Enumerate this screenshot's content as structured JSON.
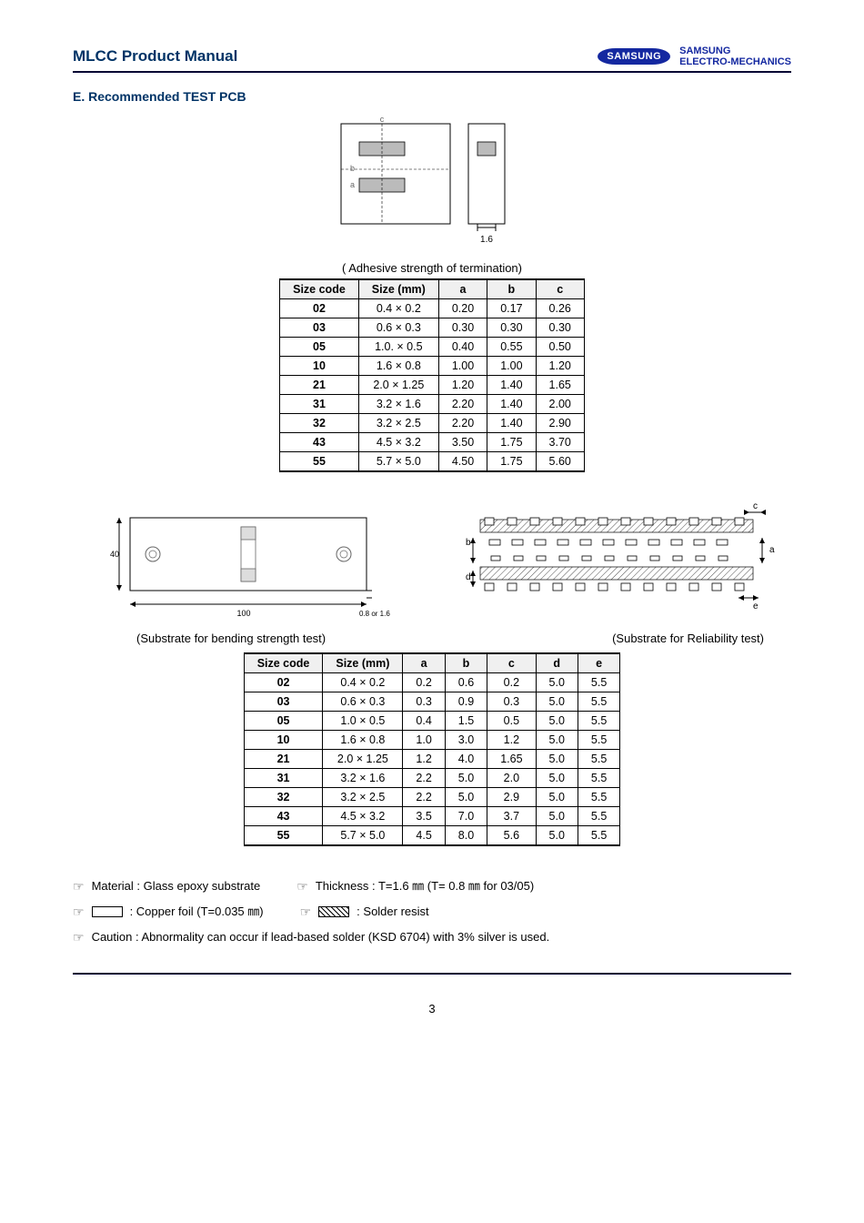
{
  "header": {
    "title": "MLCC Product Manual",
    "logo_main": "SAMSUNG",
    "logo_sub1": "SAMSUNG",
    "logo_sub2": "ELECTRO-MECHANICS"
  },
  "section_title": "E. Recommended TEST PCB",
  "diagram1": {
    "label_b": "b",
    "label_a": "a",
    "label_c": "c",
    "thickness_label": "1.6"
  },
  "table1": {
    "caption": "( Adhesive strength of termination)",
    "columns": [
      "Size code",
      "Size (mm)",
      "a",
      "b",
      "c"
    ],
    "rows": [
      [
        "02",
        "0.4 × 0.2",
        "0.20",
        "0.17",
        "0.26"
      ],
      [
        "03",
        "0.6 × 0.3",
        "0.30",
        "0.30",
        "0.30"
      ],
      [
        "05",
        "1.0. × 0.5",
        "0.40",
        "0.55",
        "0.50"
      ],
      [
        "10",
        "1.6 × 0.8",
        "1.00",
        "1.00",
        "1.20"
      ],
      [
        "21",
        "2.0 × 1.25",
        "1.20",
        "1.40",
        "1.65"
      ],
      [
        "31",
        "3.2 × 1.6",
        "2.20",
        "1.40",
        "2.00"
      ],
      [
        "32",
        "3.2 × 2.5",
        "2.20",
        "1.40",
        "2.90"
      ],
      [
        "43",
        "4.5 × 3.2",
        "3.50",
        "1.75",
        "3.70"
      ],
      [
        "55",
        "5.7 × 5.0",
        "4.50",
        "1.75",
        "5.60"
      ]
    ]
  },
  "diagram2": {
    "left_height_label": "40",
    "left_width_label": "100",
    "left_thickness_label": "0.8 or 1.6",
    "labels": {
      "a": "a",
      "b": "b",
      "c": "c",
      "d": "d",
      "e": "e"
    }
  },
  "captions": {
    "left": "(Substrate for bending strength test)",
    "right": "(Substrate for Reliability test)"
  },
  "table2": {
    "columns": [
      "Size code",
      "Size (mm)",
      "a",
      "b",
      "c",
      "d",
      "e"
    ],
    "rows": [
      [
        "02",
        "0.4 × 0.2",
        "0.2",
        "0.6",
        "0.2",
        "5.0",
        "5.5"
      ],
      [
        "03",
        "0.6 × 0.3",
        "0.3",
        "0.9",
        "0.3",
        "5.0",
        "5.5"
      ],
      [
        "05",
        "1.0 × 0.5",
        "0.4",
        "1.5",
        "0.5",
        "5.0",
        "5.5"
      ],
      [
        "10",
        "1.6 × 0.8",
        "1.0",
        "3.0",
        "1.2",
        "5.0",
        "5.5"
      ],
      [
        "21",
        "2.0 × 1.25",
        "1.2",
        "4.0",
        "1.65",
        "5.0",
        "5.5"
      ],
      [
        "31",
        "3.2 × 1.6",
        "2.2",
        "5.0",
        "2.0",
        "5.0",
        "5.5"
      ],
      [
        "32",
        "3.2 × 2.5",
        "2.2",
        "5.0",
        "2.9",
        "5.0",
        "5.5"
      ],
      [
        "43",
        "4.5 × 3.2",
        "3.5",
        "7.0",
        "3.7",
        "5.0",
        "5.5"
      ],
      [
        "55",
        "5.7 × 5.0",
        "4.5",
        "8.0",
        "5.6",
        "5.0",
        "5.5"
      ]
    ]
  },
  "notes": {
    "material": "Material : Glass epoxy substrate",
    "thickness": "Thickness : T=1.6 ㎜ (T= 0.8 ㎜ for 03/05)",
    "copper": ": Copper foil (T=0.035 ㎜)",
    "solder": ": Solder resist",
    "caution": "Caution : Abnormality can occur if lead-based solder (KSD 6704) with 3% silver is used."
  },
  "page_number": "3",
  "colors": {
    "brand_blue": "#1428a0",
    "text_dark_blue": "#003366",
    "rule_color": "#000033",
    "header_bg": "#f0f0f0"
  }
}
